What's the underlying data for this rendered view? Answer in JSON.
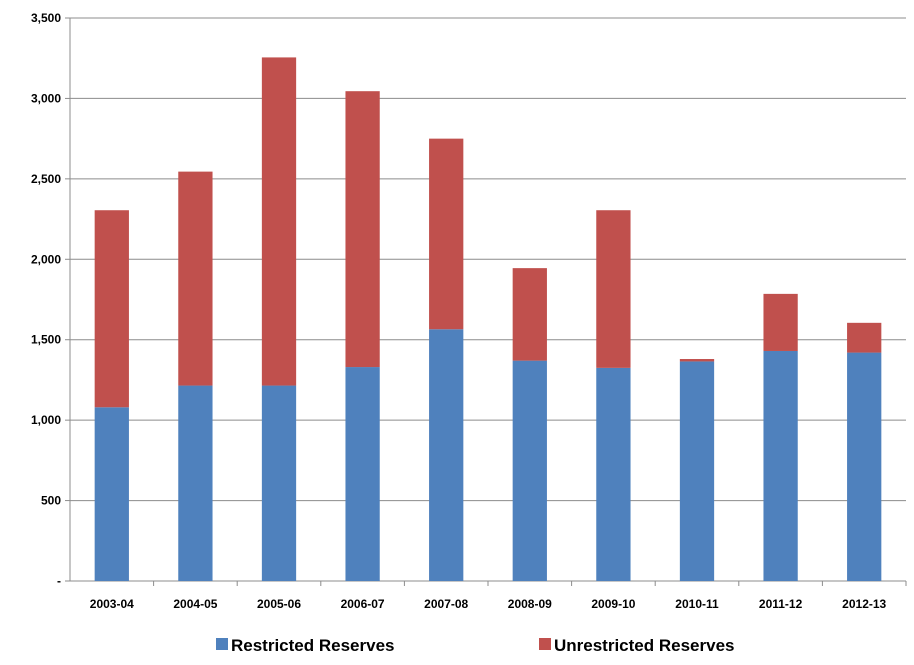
{
  "chart_data": {
    "type": "bar",
    "stacked": true,
    "title": "",
    "xlabel": "",
    "ylabel": "",
    "categories": [
      "2003-04",
      "2004-05",
      "2005-06",
      "2006-07",
      "2007-08",
      "2008-09",
      "2009-10",
      "2010-11",
      "2011-12",
      "2012-13"
    ],
    "series": [
      {
        "name": "Restricted Reserves",
        "color": "#4F81BD",
        "values": [
          1080,
          1215,
          1215,
          1330,
          1565,
          1370,
          1325,
          1365,
          1430,
          1420
        ]
      },
      {
        "name": "Unrestricted Reserves",
        "color": "#C0504D",
        "values": [
          1225,
          1330,
          2040,
          1715,
          1185,
          575,
          980,
          15,
          355,
          185
        ]
      }
    ],
    "ylim": [
      0,
      3500
    ],
    "yticks": [
      0,
      500,
      1000,
      1500,
      2000,
      2500,
      3000,
      3500
    ],
    "ytick_labels": [
      "-",
      "500",
      "1,000",
      "1,500",
      "2,000",
      "2,500",
      "3,000",
      "3,500"
    ],
    "grid": true,
    "legend_position": "bottom"
  }
}
